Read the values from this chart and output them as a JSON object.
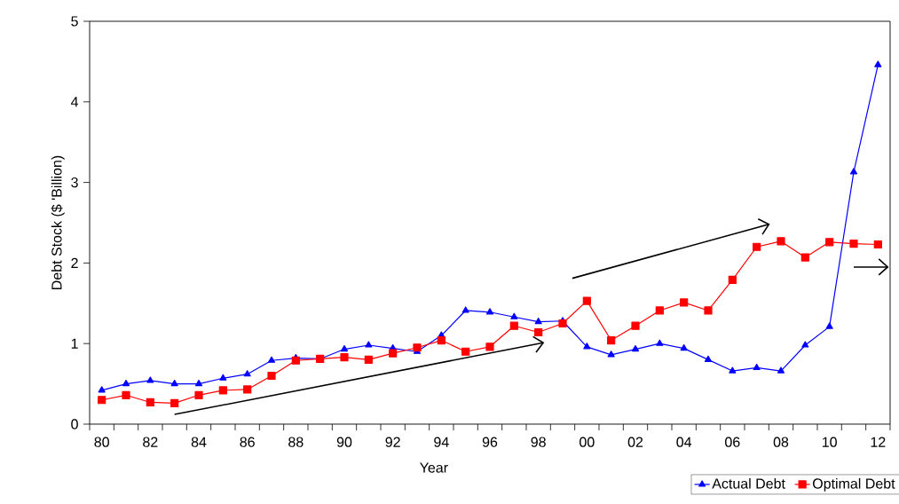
{
  "chart_data": {
    "type": "line",
    "xlabel": "Year",
    "ylabel": "Debt Stock ($ 'Billion)",
    "x": [
      1980,
      1981,
      1982,
      1983,
      1984,
      1985,
      1986,
      1987,
      1988,
      1989,
      1990,
      1991,
      1992,
      1993,
      1994,
      1995,
      1996,
      1997,
      1998,
      1999,
      2000,
      2001,
      2002,
      2003,
      2004,
      2005,
      2006,
      2007,
      2008,
      2009,
      2010,
      2011,
      2012
    ],
    "series": [
      {
        "name": "Actual Debt",
        "color": "#0000ff",
        "marker": "triangle",
        "values": [
          0.42,
          0.5,
          0.54,
          0.5,
          0.5,
          0.57,
          0.62,
          0.79,
          0.82,
          0.81,
          0.93,
          0.98,
          0.94,
          0.9,
          1.1,
          1.41,
          1.39,
          1.33,
          1.27,
          1.28,
          0.96,
          0.86,
          0.93,
          1.0,
          0.94,
          0.8,
          0.66,
          0.7,
          0.66,
          0.98,
          1.21,
          3.13,
          4.46
        ]
      },
      {
        "name": "Optimal Debt",
        "color": "#ff0000",
        "marker": "square",
        "values": [
          0.3,
          0.36,
          0.27,
          0.26,
          0.36,
          0.42,
          0.43,
          0.6,
          0.79,
          0.81,
          0.83,
          0.8,
          0.88,
          0.95,
          1.04,
          0.9,
          0.96,
          1.22,
          1.14,
          1.25,
          1.53,
          1.04,
          1.22,
          1.41,
          1.51,
          1.41,
          1.79,
          2.2,
          2.27,
          2.07,
          2.26,
          2.24,
          2.23
        ]
      }
    ],
    "xlim": [
      1979.5,
      2012.5
    ],
    "ylim": [
      0,
      5
    ],
    "yticks": [
      0,
      1,
      2,
      3,
      4,
      5
    ],
    "xticks": [
      {
        "value": 1979.5,
        "label": null
      },
      {
        "value": 1980,
        "label": "80"
      },
      {
        "value": 1980.5,
        "label": null
      },
      {
        "value": 1981.5,
        "label": null
      },
      {
        "value": 1982,
        "label": "82"
      },
      {
        "value": 1982.5,
        "label": null
      },
      {
        "value": 1983.5,
        "label": null
      },
      {
        "value": 1984,
        "label": "84"
      },
      {
        "value": 1984.5,
        "label": null
      },
      {
        "value": 1985.5,
        "label": null
      },
      {
        "value": 1986,
        "label": "86"
      },
      {
        "value": 1986.5,
        "label": null
      },
      {
        "value": 1987.5,
        "label": null
      },
      {
        "value": 1988,
        "label": "88"
      },
      {
        "value": 1988.5,
        "label": null
      },
      {
        "value": 1989.5,
        "label": null
      },
      {
        "value": 1990,
        "label": "90"
      },
      {
        "value": 1990.5,
        "label": null
      },
      {
        "value": 1991.5,
        "label": null
      },
      {
        "value": 1992,
        "label": "92"
      },
      {
        "value": 1992.5,
        "label": null
      },
      {
        "value": 1993.5,
        "label": null
      },
      {
        "value": 1994,
        "label": "94"
      },
      {
        "value": 1994.5,
        "label": null
      },
      {
        "value": 1995.5,
        "label": null
      },
      {
        "value": 1996,
        "label": "96"
      },
      {
        "value": 1996.5,
        "label": null
      },
      {
        "value": 1997.5,
        "label": null
      },
      {
        "value": 1998,
        "label": "98"
      },
      {
        "value": 1998.5,
        "label": null
      },
      {
        "value": 1999.5,
        "label": null
      },
      {
        "value": 2000,
        "label": "00"
      },
      {
        "value": 2000.5,
        "label": null
      },
      {
        "value": 2001.5,
        "label": null
      },
      {
        "value": 2002,
        "label": "02"
      },
      {
        "value": 2002.5,
        "label": null
      },
      {
        "value": 2003.5,
        "label": null
      },
      {
        "value": 2004,
        "label": "04"
      },
      {
        "value": 2004.5,
        "label": null
      },
      {
        "value": 2005.5,
        "label": null
      },
      {
        "value": 2006,
        "label": "06"
      },
      {
        "value": 2006.5,
        "label": null
      },
      {
        "value": 2007.5,
        "label": null
      },
      {
        "value": 2008,
        "label": "08"
      },
      {
        "value": 2008.5,
        "label": null
      },
      {
        "value": 2009.5,
        "label": null
      },
      {
        "value": 2010,
        "label": "10"
      },
      {
        "value": 2010.5,
        "label": null
      },
      {
        "value": 2011.5,
        "label": null
      },
      {
        "value": 2012,
        "label": "12"
      },
      {
        "value": 2012.5,
        "label": null
      }
    ],
    "grid": false,
    "legend": "bottom right",
    "line_style": "solid"
  }
}
